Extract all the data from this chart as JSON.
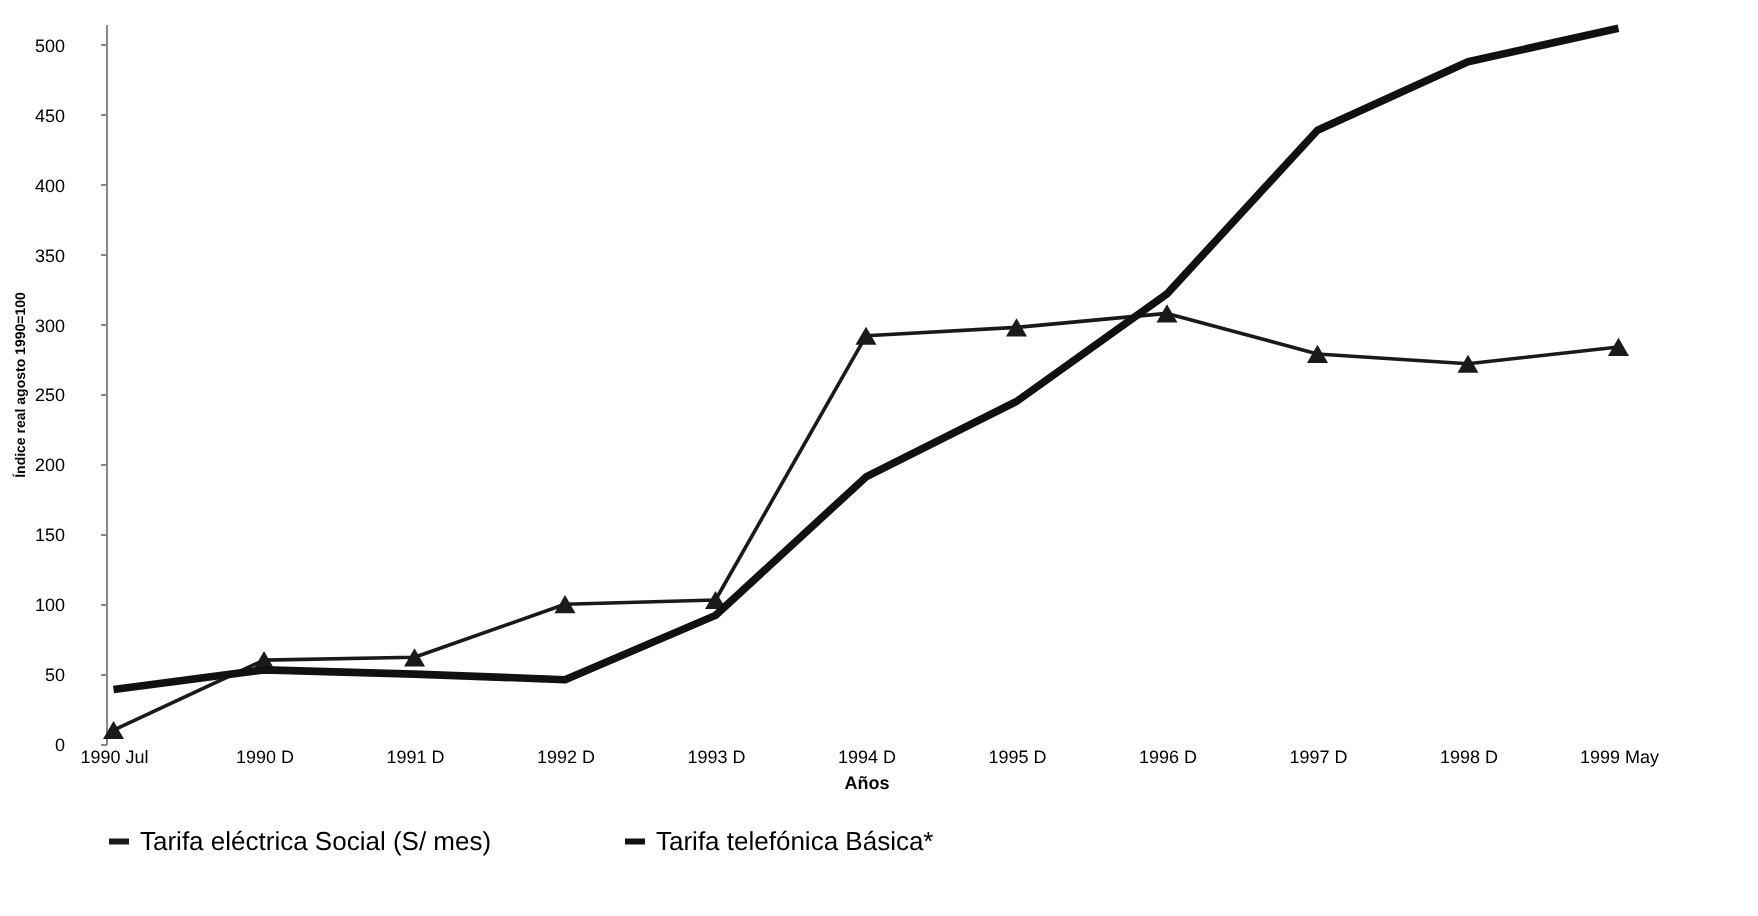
{
  "chart_data": {
    "type": "line",
    "xlabel": "Años",
    "ylabel": "Índice real agosto 1990=100",
    "categories": [
      "1990 Jul",
      "1990 D",
      "1991 D",
      "1992 D",
      "1993 D",
      "1994 D",
      "1995 D",
      "1996 D",
      "1997 D",
      "1998 D",
      "1999 May"
    ],
    "series": [
      {
        "name": "Tarifa eléctrica Social (S/ mes)",
        "color": "#1a1a1a",
        "marker": "triangle",
        "values": [
          10,
          60,
          62,
          100,
          103,
          292,
          298,
          308,
          279,
          272,
          284
        ]
      },
      {
        "name": "Tarifa telefónica  Básica*",
        "color": "#111111",
        "marker": "none",
        "values": [
          39,
          53,
          50,
          46,
          92,
          191,
          245,
          322,
          439,
          488,
          512
        ]
      }
    ],
    "ylim": [
      0,
      515
    ],
    "yticks": [
      0,
      50,
      100,
      150,
      200,
      250,
      300,
      350,
      400,
      450,
      500
    ],
    "grid": false,
    "legend": "bottom"
  }
}
